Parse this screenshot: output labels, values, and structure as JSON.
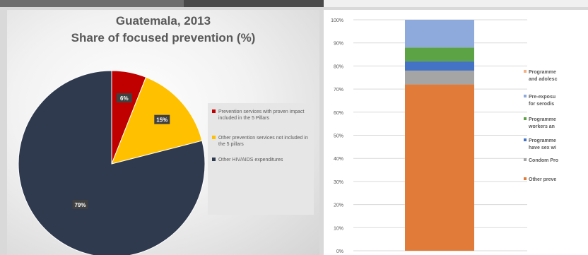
{
  "chart_data": [
    {
      "type": "pie",
      "title": "Guatemala, 2013",
      "subtitle": "Share of focused prevention (%)",
      "labels": [
        "Prevention services with proven impact included in the 5 Pillars",
        "Other prevention services not included in the 5 pillars",
        "Other HIV/AIDS expenditures"
      ],
      "values": [
        6,
        15,
        79
      ],
      "data_labels": [
        "6%",
        "15%",
        "79%"
      ],
      "colors": [
        "#c00000",
        "#ffc000",
        "#2f3a4f"
      ],
      "legend_position": "right"
    },
    {
      "type": "bar",
      "stacked": true,
      "categories": [
        ""
      ],
      "ylim": [
        0,
        100
      ],
      "y_ticks": [
        "0%",
        "10%",
        "20%",
        "30%",
        "40%",
        "50%",
        "60%",
        "70%",
        "80%",
        "90%",
        "100%"
      ],
      "grid": true,
      "legend_position": "right",
      "series": [
        {
          "name": "Other preve",
          "values": [
            72
          ],
          "color": "#e07b3a"
        },
        {
          "name": "Condom Pro",
          "values": [
            6
          ],
          "color": "#a5a5a5"
        },
        {
          "name": "Programme have sex wi",
          "values": [
            4
          ],
          "color": "#4472c4"
        },
        {
          "name": "Programme workers an",
          "values": [
            6
          ],
          "color": "#5ba345"
        },
        {
          "name": "Pre-exposu for serodis",
          "values": [
            12
          ],
          "color": "#8ea9db"
        },
        {
          "name": "Programme and adolesc",
          "values": [
            0
          ],
          "color": "#f4b183"
        }
      ],
      "legend_order": [
        5,
        4,
        3,
        2,
        1,
        0
      ]
    }
  ]
}
